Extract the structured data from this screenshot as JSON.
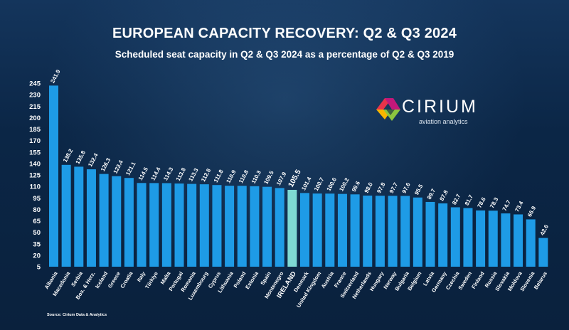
{
  "title": "EUROPEAN CAPACITY RECOVERY: Q2 & Q3 2024",
  "subtitle": "Scheduled seat capacity in Q2 & Q3 2024 as a percentage of Q2 & Q3 2019",
  "logo": {
    "name": "CIRIUM",
    "tagline": "aviation analytics"
  },
  "source": "Source: Cirium Data & Analytics",
  "colors": {
    "bar": "#1e9be6",
    "highlight_bar": "#7fd9d3",
    "highlight_label": "#5fd8d0",
    "background": "#0b2240"
  },
  "chart_data": {
    "type": "bar",
    "title": "EUROPEAN CAPACITY RECOVERY: Q2 & Q3 2024",
    "subtitle": "Scheduled seat capacity in Q2 & Q3 2024 as a percentage of Q2 & Q3 2019",
    "xlabel": "",
    "ylabel": "",
    "ylim": [
      5,
      245
    ],
    "yticks": [
      5,
      20,
      35,
      50,
      65,
      80,
      95,
      110,
      125,
      140,
      155,
      170,
      185,
      200,
      215,
      230,
      245
    ],
    "grid": false,
    "highlight": "IRELAND",
    "categories": [
      "Albania",
      "Macedonia",
      "Serbia",
      "Bos. & Herz.",
      "Iceland",
      "Greece",
      "Croatia",
      "Italy",
      "Türkiye",
      "Malta",
      "Portugal",
      "Romania",
      "Luxembourg",
      "Cyprus",
      "Lithuania",
      "Poland",
      "Estonia",
      "Spain",
      "Montenegro",
      "IRELAND",
      "Denmark",
      "United Kingdom",
      "Austria",
      "France",
      "Switzerland",
      "Netherlands",
      "Hungary",
      "Norway",
      "Bulgaria",
      "Belgium",
      "Latvia",
      "Germany",
      "Czechia",
      "Sweden",
      "Finland",
      "Russia",
      "Slovakia",
      "Moldova",
      "Slovenia",
      "Belarus"
    ],
    "values": [
      241.9,
      138.2,
      135.8,
      132.4,
      126.3,
      123.4,
      121.1,
      114.5,
      114.4,
      114.3,
      113.8,
      113.3,
      112.8,
      111.8,
      110.9,
      110.8,
      110.3,
      109.5,
      107.9,
      105.5,
      101.4,
      100.7,
      100.6,
      100.2,
      99.6,
      98.0,
      97.8,
      97.7,
      97.6,
      95.5,
      89.7,
      87.8,
      82.7,
      81.7,
      78.6,
      78.3,
      74.7,
      73.4,
      66.9,
      42.6
    ],
    "value_labels": [
      "241.9",
      "138.2",
      "135.8",
      "132.4",
      "126.3",
      "123.4",
      "121.1",
      "114.5",
      "114.4",
      "114.3",
      "113.8",
      "113.3",
      "112.8",
      "111.8",
      "110.9",
      "110.8",
      "110.3",
      "109.5",
      "107.9",
      "105.5",
      "101.4",
      "100.7",
      "100.6",
      "100.2",
      "99.6",
      "98.0",
      "97.8",
      "97.7",
      "97.6",
      "95.5",
      "89.7",
      "87.8",
      "82.7",
      "81.7",
      "78.6",
      "78.3",
      "74.7",
      "73.4",
      "66.9",
      "42.6"
    ]
  }
}
